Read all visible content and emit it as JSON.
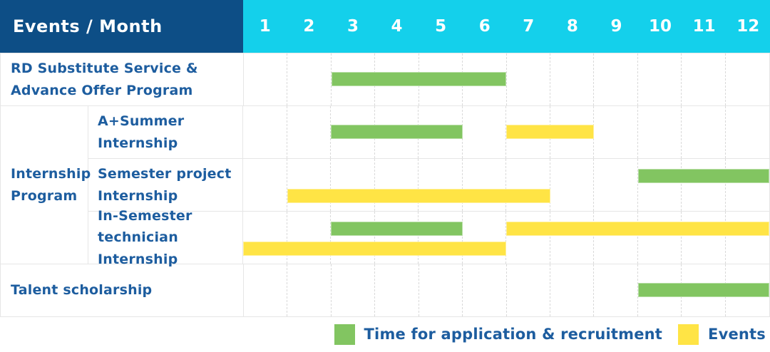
{
  "header": {
    "title": "Events / Month"
  },
  "group_label": "Internship\nProgram",
  "colors": {
    "header_bg": "#0d4e86",
    "months_bg": "#14d0eb",
    "header_text": "#ffffff",
    "label_text": "#1d5d9f",
    "application_green": "#82c561",
    "event_yellow": "#ffe445",
    "row_border": "#e6e6e6",
    "grid_dash": "#d9d9d9"
  },
  "legend": [
    {
      "category": "application",
      "label": "Time for application & recruitment"
    },
    {
      "category": "event",
      "label": "Events"
    }
  ],
  "chart_data": {
    "type": "gantt",
    "x_axis_label": "Month",
    "months": [
      "1",
      "2",
      "3",
      "4",
      "5",
      "6",
      "7",
      "8",
      "9",
      "10",
      "11",
      "12"
    ],
    "x_range": [
      1,
      12
    ],
    "grid": true,
    "legend_position": "bottom-right",
    "categories": {
      "application": {
        "label": "Time for application & recruitment",
        "color": "#82c561"
      },
      "event": {
        "label": "Events",
        "color": "#ffe445"
      }
    },
    "rows": [
      {
        "id": "rd-substitute-service-advance-offer-program",
        "label": "RD Substitute Service &\nAdvance Offer Program",
        "group": null,
        "bars": [
          {
            "category": "application",
            "start_month": 3,
            "end_month": 6,
            "lane": 0
          }
        ]
      },
      {
        "id": "a-plus-summer-internship",
        "label": "A+Summer\nInternship",
        "group": "Internship Program",
        "bars": [
          {
            "category": "application",
            "start_month": 3,
            "end_month": 5,
            "lane": 0
          },
          {
            "category": "event",
            "start_month": 7,
            "end_month": 8,
            "lane": 0
          }
        ]
      },
      {
        "id": "semester-project-internship",
        "label": "Semester project\nInternship",
        "group": "Internship Program",
        "bars": [
          {
            "category": "application",
            "start_month": 10,
            "end_month": 12,
            "lane": 0
          },
          {
            "category": "event",
            "start_month": 2,
            "end_month": 7,
            "lane": 1
          }
        ]
      },
      {
        "id": "in-semester-technician-internship",
        "label": "In-Semester\ntechnician Internship",
        "group": "Internship Program",
        "bars": [
          {
            "category": "application",
            "start_month": 3,
            "end_month": 5,
            "lane": 0
          },
          {
            "category": "event",
            "start_month": 7,
            "end_month": 12,
            "lane": 0
          },
          {
            "category": "event",
            "start_month": 1,
            "end_month": 6,
            "lane": 1
          }
        ]
      },
      {
        "id": "talent-scholarship",
        "label": "Talent scholarship",
        "group": null,
        "bars": [
          {
            "category": "application",
            "start_month": 10,
            "end_month": 12,
            "lane": 0
          }
        ]
      }
    ]
  }
}
